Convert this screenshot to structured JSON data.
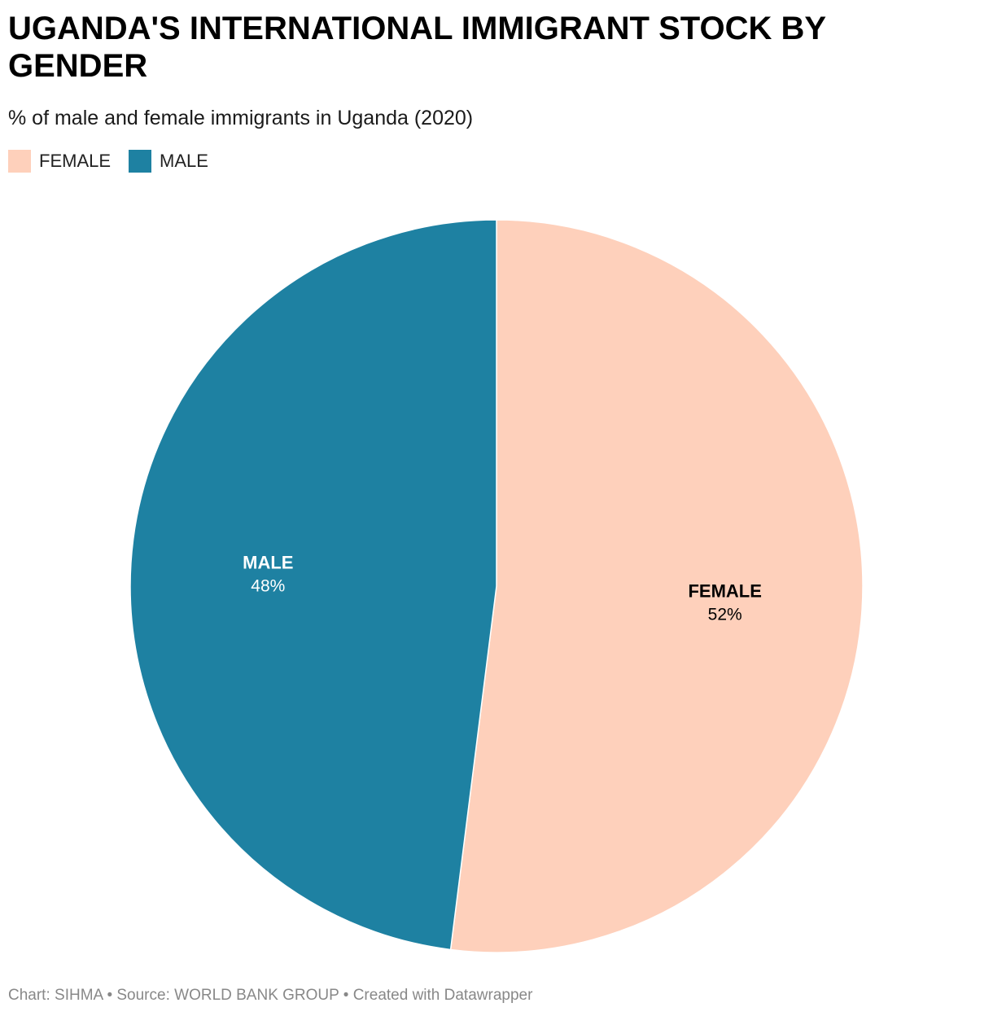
{
  "title": "UGANDA'S INTERNATIONAL IMMIGRANT STOCK BY GENDER",
  "subtitle": "% of male and female immigrants in Uganda (2020)",
  "footer": {
    "chart_credit": "Chart: SIHMA",
    "separator": "•",
    "source": "Source: WORLD BANK GROUP",
    "created_with": "Created with Datawrapper"
  },
  "chart_data": {
    "type": "pie",
    "title": "UGANDA'S INTERNATIONAL IMMIGRANT STOCK BY GENDER",
    "subtitle": "% of male and female immigrants in Uganda (2020)",
    "legend_position": "top-left",
    "categories": [
      "FEMALE",
      "MALE"
    ],
    "values": [
      52,
      48
    ],
    "value_labels": [
      "52%",
      "48%"
    ],
    "colors": [
      "#fed0bb",
      "#1e81a2"
    ],
    "label_colors": [
      "#000000",
      "#ffffff"
    ]
  }
}
